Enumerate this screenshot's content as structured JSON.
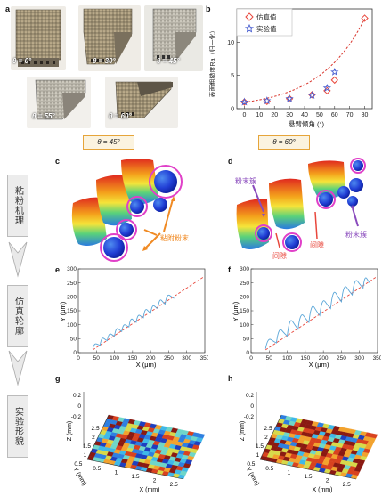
{
  "panels": {
    "a": "a",
    "b": "b",
    "c": "c",
    "d": "d",
    "e": "e",
    "f": "f",
    "g": "g",
    "h": "h"
  },
  "photos": [
    {
      "label": "θ = 0°"
    },
    {
      "label": "θ = 30°"
    },
    {
      "label": "θ = 45°"
    },
    {
      "label": "θ = 55°"
    },
    {
      "label": "θ = 60°"
    }
  ],
  "column_headers": {
    "left": "θ = 45°",
    "right": "θ = 60°"
  },
  "side_labels": [
    "粘粉机理",
    "仿真轮廓",
    "实验形貌"
  ],
  "annotations": {
    "c_powder": "粘附粉末",
    "d_cluster_left": "粉末簇",
    "d_cluster_right": "粉末簇",
    "d_gap_left": "间隙",
    "d_gap_right": "间隙"
  },
  "axis_labels": {
    "e_x": "X (μm)",
    "e_y": "Y (μm)",
    "f_x": "X (μm)",
    "f_y": "Y (μm)",
    "g_x": "X (mm)",
    "g_y": "Y (mm)",
    "g_z": "Z (mm)",
    "h_x": "X (mm)",
    "h_y": "Y (mm)",
    "h_z": "Z (mm)"
  },
  "chart_data": [
    {
      "panel": "b",
      "type": "scatter",
      "xlabel": "悬臂倾角 (°)",
      "ylabel": "表面粗糙度Ra（归一化）",
      "xlim": [
        -5,
        85
      ],
      "ylim": [
        0,
        15
      ],
      "xticks": [
        0,
        10,
        20,
        30,
        40,
        50,
        60,
        70,
        80
      ],
      "yticks": [
        0,
        5,
        10
      ],
      "legend_position": "top-left",
      "series": [
        {
          "name": "仿真值",
          "marker": "diamond",
          "color": "#e8473c",
          "x": [
            0,
            15,
            30,
            45,
            55,
            60,
            80
          ],
          "y": [
            1.0,
            1.1,
            1.5,
            2.1,
            2.7,
            4.3,
            13.6
          ]
        },
        {
          "name": "实验值",
          "marker": "star",
          "color": "#4a5fd0",
          "x": [
            0,
            15,
            30,
            45,
            55,
            60
          ],
          "y": [
            1.0,
            1.2,
            1.5,
            2.0,
            3.1,
            5.5
          ]
        }
      ],
      "fit_curve": {
        "color": "#d9342b",
        "style": "dashed"
      }
    },
    {
      "panel": "e",
      "type": "line",
      "xlim": [
        0,
        350
      ],
      "ylim": [
        0,
        300
      ],
      "xticks": [
        0,
        50,
        100,
        150,
        200,
        250,
        300,
        350
      ],
      "yticks": [
        0,
        50,
        100,
        150,
        200,
        250,
        300
      ]
    },
    {
      "panel": "f",
      "type": "line",
      "xlim": [
        0,
        350
      ],
      "ylim": [
        0,
        300
      ],
      "xticks": [
        0,
        50,
        100,
        150,
        200,
        250,
        300,
        350
      ],
      "yticks": [
        0,
        50,
        100,
        150,
        200,
        250,
        300
      ]
    },
    {
      "panel": "g",
      "type": "heatmap",
      "xticks": [
        "0.5",
        "1",
        "1.5",
        "2",
        "2.5"
      ],
      "yticks": [
        "0.5",
        "1",
        "1.5",
        "2",
        "2.5"
      ],
      "zticks": [
        "0.2",
        "0",
        "-0.2"
      ]
    },
    {
      "panel": "h",
      "type": "heatmap",
      "xticks": [
        "0.5",
        "1",
        "1.5",
        "2",
        "2.5"
      ],
      "yticks": [
        "0.5",
        "1",
        "1.5",
        "2",
        "2.5"
      ],
      "zticks": [
        "0.2",
        "0",
        "-0.2"
      ]
    }
  ],
  "colors": {
    "accent_orange": "#f08a24",
    "accent_purple": "#8a4bbd",
    "ring_magenta": "#e040c8",
    "ref_dashed": "#e8473c",
    "profile_blue": "#5aa6d8"
  }
}
